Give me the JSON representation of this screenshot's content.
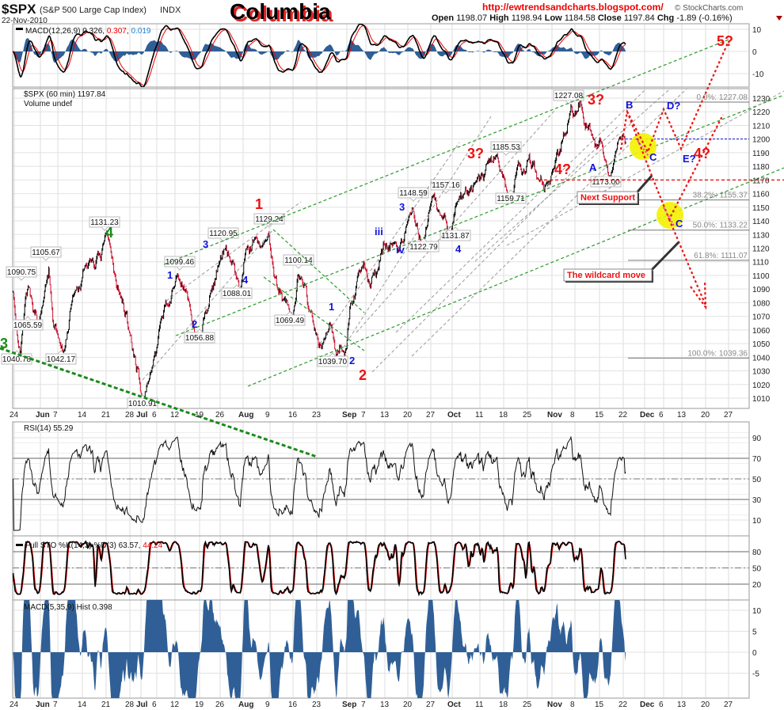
{
  "header": {
    "symbol": "$SPX",
    "name": "(S&P 500 Large Cap Index)",
    "exchange": "INDX",
    "date": "22-Nov-2010",
    "brand_title": "Columbia",
    "url": "http://ewtrendsandcharts.blogspot.com/",
    "copyright": "© StockCharts.com",
    "ohlc": [
      {
        "k": "Open",
        "v": "1198.07"
      },
      {
        "k": "High",
        "v": "1198.94"
      },
      {
        "k": "Low",
        "v": "1184.58"
      },
      {
        "k": "Close",
        "v": "1197.84"
      },
      {
        "k": "Chg",
        "v": "-1.89 (-0.16%)"
      }
    ],
    "chg_icon": "down-triangle-icon"
  },
  "colors": {
    "up": "#000000",
    "down": "#c8102e",
    "wave_red": "#ee1111",
    "wave_blue": "#1111dd",
    "wave_green": "#1a8a1a",
    "hist": "#2f5f96",
    "highlight": "#f2f200"
  },
  "chart_data": [
    {
      "type": "ohlc",
      "title": "$SPX (60 min) 1197.84",
      "subtitle": "Volume undef",
      "ylim": [
        1005,
        1235
      ],
      "yticks": [
        1230,
        1220,
        1210,
        1200,
        1190,
        1180,
        1170,
        1160,
        1150,
        1140,
        1130,
        1120,
        1110,
        1100,
        1090,
        1080,
        1070,
        1060,
        1050,
        1040,
        1030,
        1020,
        1010
      ],
      "x_ticks": [
        "24",
        "Jun",
        "7",
        "14",
        "21",
        "28",
        "Jul",
        "6",
        "12",
        "19",
        "26",
        "Aug",
        "9",
        "16",
        "23",
        "Sep",
        "7",
        "13",
        "20",
        "27",
        "Oct",
        "11",
        "18",
        "25",
        "Nov",
        "8",
        "15",
        "22",
        "Dec",
        "6",
        "13",
        "20",
        "27"
      ],
      "pivots": [
        {
          "date": "2010-05-24",
          "price": 1088
        },
        {
          "date": "2010-05-25",
          "price": 1040.78,
          "label": "1040.78"
        },
        {
          "date": "2010-05-26",
          "price": 1078
        },
        {
          "date": "2010-05-27",
          "price": 1090.75,
          "label": "1090.75"
        },
        {
          "date": "2010-05-28",
          "price": 1072
        },
        {
          "date": "2010-06-01",
          "price": 1065.59,
          "label": "1065.59"
        },
        {
          "date": "2010-06-03",
          "price": 1105.67,
          "label": "1105.67"
        },
        {
          "date": "2010-06-04",
          "price": 1062
        },
        {
          "date": "2010-06-08",
          "price": 1042.17,
          "label": "1042.17"
        },
        {
          "date": "2010-06-10",
          "price": 1085
        },
        {
          "date": "2010-06-14",
          "price": 1098
        },
        {
          "date": "2010-06-16",
          "price": 1112
        },
        {
          "date": "2010-06-21",
          "price": 1131.23,
          "label": "1131.23"
        },
        {
          "date": "2010-06-23",
          "price": 1096
        },
        {
          "date": "2010-06-25",
          "price": 1072
        },
        {
          "date": "2010-06-29",
          "price": 1040
        },
        {
          "date": "2010-07-01",
          "price": 1010.91,
          "label": "1010.91"
        },
        {
          "date": "2010-07-02",
          "price": 1024
        },
        {
          "date": "2010-07-07",
          "price": 1060
        },
        {
          "date": "2010-07-09",
          "price": 1078
        },
        {
          "date": "2010-07-13",
          "price": 1099.46,
          "label": "1099.46"
        },
        {
          "date": "2010-07-16",
          "price": 1064
        },
        {
          "date": "2010-07-20",
          "price": 1056.88,
          "label": "1056.88"
        },
        {
          "date": "2010-07-23",
          "price": 1103
        },
        {
          "date": "2010-07-27",
          "price": 1120.95,
          "label": "1120.95"
        },
        {
          "date": "2010-07-30",
          "price": 1088.01,
          "label": "1088.01"
        },
        {
          "date": "2010-08-02",
          "price": 1116
        },
        {
          "date": "2010-08-04",
          "price": 1127
        },
        {
          "date": "2010-08-09",
          "price": 1129.24,
          "label": "1129.24"
        },
        {
          "date": "2010-08-11",
          "price": 1087
        },
        {
          "date": "2010-08-16",
          "price": 1069.49,
          "label": "1069.49"
        },
        {
          "date": "2010-08-17",
          "price": 1100.14,
          "label": "1100.14"
        },
        {
          "date": "2010-08-20",
          "price": 1070
        },
        {
          "date": "2010-08-24",
          "price": 1046
        },
        {
          "date": "2010-08-26",
          "price": 1063
        },
        {
          "date": "2010-08-27",
          "price": 1039.7,
          "label": "1039.70"
        },
        {
          "date": "2010-08-31",
          "price": 1045
        },
        {
          "date": "2010-09-01",
          "price": 1080
        },
        {
          "date": "2010-09-03",
          "price": 1104
        },
        {
          "date": "2010-09-08",
          "price": 1093
        },
        {
          "date": "2010-09-13",
          "price": 1123
        },
        {
          "date": "2010-09-16",
          "price": 1118
        },
        {
          "date": "2010-09-21",
          "price": 1148.59,
          "label": "1148.59"
        },
        {
          "date": "2010-09-23",
          "price": 1122.79,
          "label": "1122.79"
        },
        {
          "date": "2010-09-27",
          "price": 1157.16,
          "label": "1157.16"
        },
        {
          "date": "2010-10-01",
          "price": 1131.87,
          "label": "1131.87"
        },
        {
          "date": "2010-10-05",
          "price": 1160
        },
        {
          "date": "2010-10-08",
          "price": 1168
        },
        {
          "date": "2010-10-14",
          "price": 1185.53,
          "label": "1185.53"
        },
        {
          "date": "2010-10-19",
          "price": 1159.71,
          "label": "1159.71"
        },
        {
          "date": "2010-10-21",
          "price": 1183
        },
        {
          "date": "2010-10-25",
          "price": 1185
        },
        {
          "date": "2010-10-27",
          "price": 1171
        },
        {
          "date": "2010-11-01",
          "price": 1175
        },
        {
          "date": "2010-11-03",
          "price": 1197
        },
        {
          "date": "2010-11-05",
          "price": 1225
        },
        {
          "date": "2010-11-08",
          "price": 1218
        },
        {
          "date": "2010-11-09",
          "price": 1227.08,
          "label": "1227.08"
        },
        {
          "date": "2010-11-11",
          "price": 1207
        },
        {
          "date": "2010-11-12",
          "price": 1195
        },
        {
          "date": "2010-11-15",
          "price": 1200
        },
        {
          "date": "2010-11-17",
          "price": 1173.0,
          "label": "1173.00"
        },
        {
          "date": "2010-11-19",
          "price": 1200
        },
        {
          "date": "2010-11-22",
          "price": 1197.84
        }
      ],
      "fib_levels": [
        {
          "label": "0.0%: 1227.08",
          "price": 1227.08
        },
        {
          "label": "38.2%: 1155.37",
          "price": 1155.37
        },
        {
          "label": "50.0%: 1133.22",
          "price": 1133.22
        },
        {
          "label": "61.8%: 1111.07",
          "price": 1111.07
        },
        {
          "label": "100.0%: 1039.36",
          "price": 1039.36
        }
      ],
      "levels": {
        "blue_dashed": 1200,
        "red_dashed": 1170
      },
      "wave_labels": [
        {
          "text": "3",
          "color": "green"
        },
        {
          "text": "4",
          "color": "green"
        },
        {
          "text": "1",
          "color": "red"
        },
        {
          "text": "2",
          "color": "red"
        },
        {
          "text": "3?",
          "color": "red"
        },
        {
          "text": "4?",
          "color": "red"
        },
        {
          "text": "3?",
          "color": "red"
        },
        {
          "text": "5?",
          "color": "red"
        },
        {
          "text": "4?",
          "color": "red"
        },
        {
          "text": "1",
          "color": "blue"
        },
        {
          "text": "2",
          "color": "blue"
        },
        {
          "text": "3",
          "color": "blue"
        },
        {
          "text": "4",
          "color": "blue"
        },
        {
          "text": "1",
          "color": "blue"
        },
        {
          "text": "2",
          "color": "blue"
        },
        {
          "text": "iii",
          "color": "blue"
        },
        {
          "text": "iv",
          "color": "blue"
        },
        {
          "text": "3",
          "color": "blue"
        },
        {
          "text": "4",
          "color": "blue"
        },
        {
          "text": "A",
          "color": "blue"
        },
        {
          "text": "B",
          "color": "blue"
        },
        {
          "text": "C",
          "color": "blue"
        },
        {
          "text": "D?",
          "color": "blue"
        },
        {
          "text": "E?",
          "color": "blue"
        },
        {
          "text": "C",
          "color": "blue"
        }
      ],
      "callouts": [
        "Next Support",
        "The wildcard move"
      ]
    },
    {
      "type": "line",
      "title": "MACD(12,26,9)",
      "values_text": [
        "0.326",
        "0.307",
        "0.019"
      ],
      "yticks": [
        10,
        0,
        -10
      ],
      "ylim": [
        -13,
        13
      ],
      "series": [
        "MACD",
        "signal",
        "histogram"
      ]
    },
    {
      "type": "line",
      "title": "RSI(14) 55.29",
      "yticks": [
        90,
        70,
        50,
        30,
        10
      ],
      "ylim": [
        0,
        100
      ],
      "reference": [
        70,
        50,
        30
      ]
    },
    {
      "type": "line",
      "title": "Full STO %K(14,3) %D(3)",
      "values_text": [
        "63.57",
        "44.24"
      ],
      "yticks": [
        80,
        50,
        20
      ],
      "ylim": [
        0,
        100
      ]
    },
    {
      "type": "bar",
      "title": "MACD(5,35,9) Hist 0.398",
      "yticks": [
        10,
        5,
        0,
        -5
      ],
      "ylim": [
        -11,
        11
      ]
    }
  ]
}
